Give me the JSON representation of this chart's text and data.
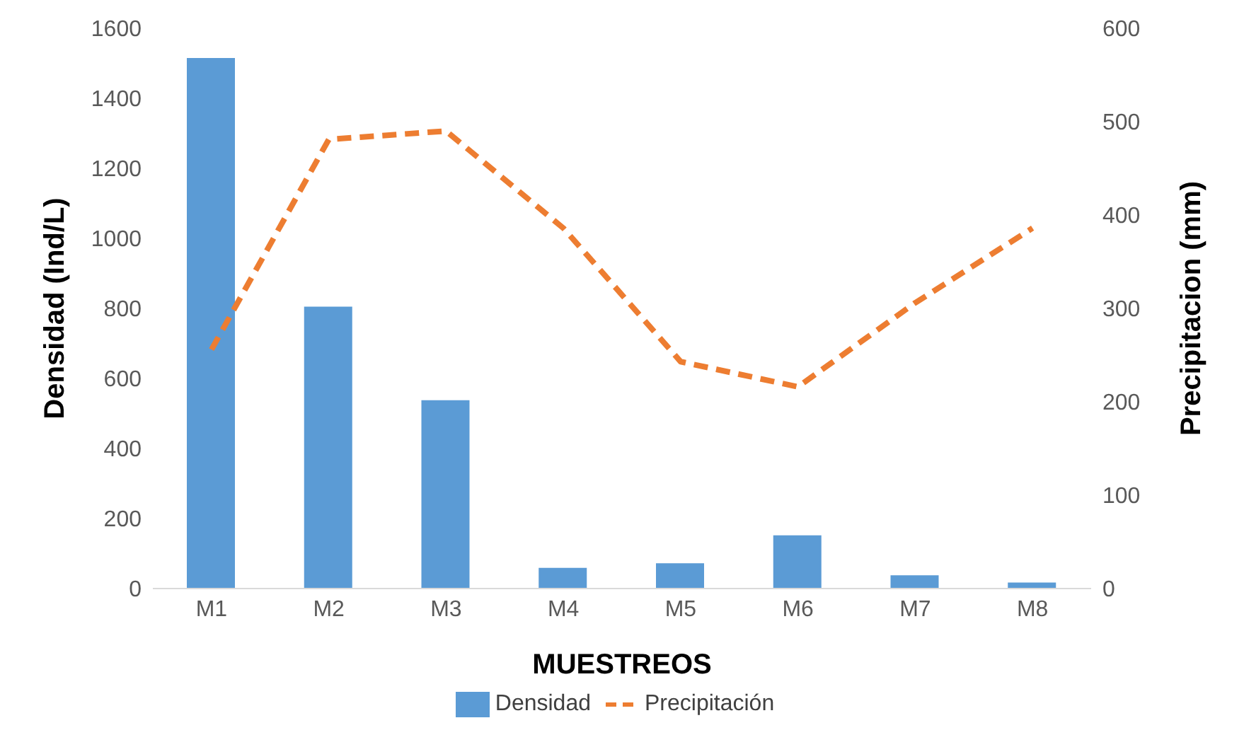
{
  "chart_data": {
    "type": "bar",
    "xlabel": "MUESTREOS",
    "ylabel": "Densidad (Ind/L)",
    "y2label": "Precipitacion (mm)",
    "categories": [
      "M1",
      "M2",
      "M3",
      "M4",
      "M5",
      "M6",
      "M7",
      "M8"
    ],
    "series": [
      {
        "name": "Densidad",
        "color": "#5b9bd5",
        "values": [
          1515,
          805,
          538,
          59,
          72,
          152,
          38,
          17
        ]
      },
      {
        "name": "Precipitación",
        "type": "line",
        "axis": "y2",
        "color": "#ed7d31",
        "line_style": "dashed",
        "marker": "none",
        "values": [
          256,
          481,
          490,
          386,
          243,
          216,
          306,
          386
        ]
      }
    ],
    "ylim": [
      0,
      1600
    ],
    "yticks": [
      0,
      200,
      400,
      600,
      800,
      1000,
      1200,
      1400,
      1600
    ],
    "y2lim": [
      0,
      600
    ],
    "y2ticks": [
      0,
      100,
      200,
      300,
      400,
      500,
      600
    ],
    "grid": false,
    "legend": "bottom"
  }
}
